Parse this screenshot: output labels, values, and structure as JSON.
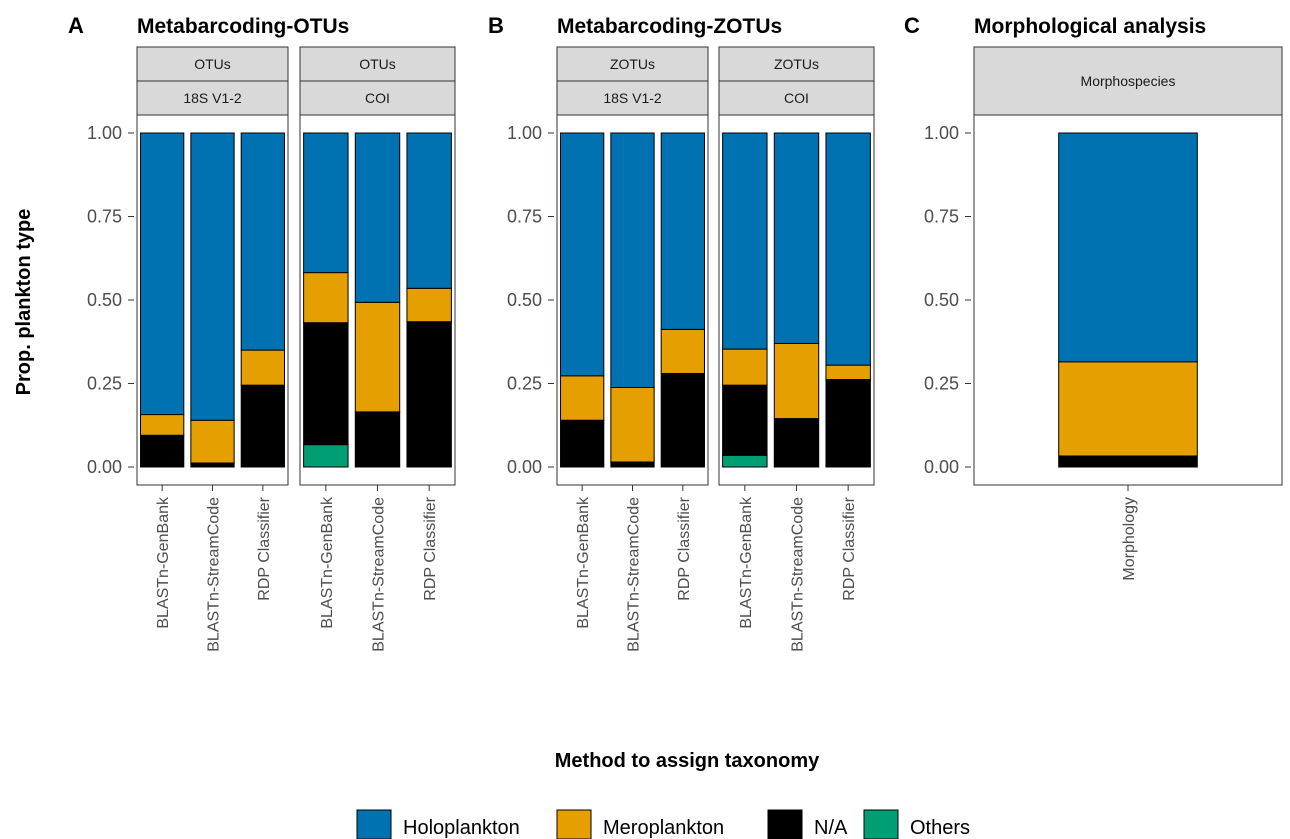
{
  "colors": {
    "Holoplankton": "#0072b2",
    "Meroplankton": "#e69f00",
    "N/A": "#000000",
    "Others": "#009e73"
  },
  "chart_data": {
    "type": "bar",
    "stacked": true,
    "ylabel": "Prop. plankton type",
    "xlabel": "Method to assign taxonomy",
    "ylim": [
      0,
      1
    ],
    "yticks": [
      "0.00",
      "0.25",
      "0.50",
      "0.75",
      "1.00"
    ],
    "legend": {
      "position": "bottom",
      "entries": [
        "Holoplankton",
        "Meroplankton",
        "N/A",
        "Others"
      ]
    },
    "panels": [
      {
        "letter": "A",
        "title": "Metabarcoding-OTUs",
        "facets": [
          {
            "strip_top": "OTUs",
            "strip_bottom": "18S V1-2",
            "categories": [
              "BLASTn-GenBank",
              "BLASTn-StreamCode",
              "RDP Classifier"
            ],
            "series": [
              {
                "name": "Others",
                "values": [
                  0.0,
                  0.0,
                  0.0
                ]
              },
              {
                "name": "N/A",
                "values": [
                  0.095,
                  0.012,
                  0.245
                ]
              },
              {
                "name": "Meroplankton",
                "values": [
                  0.062,
                  0.128,
                  0.105
                ]
              },
              {
                "name": "Holoplankton",
                "values": [
                  0.843,
                  0.86,
                  0.65
                ]
              }
            ]
          },
          {
            "strip_top": "OTUs",
            "strip_bottom": "COI",
            "categories": [
              "BLASTn-GenBank",
              "BLASTn-StreamCode",
              "RDP Classifier"
            ],
            "series": [
              {
                "name": "Others",
                "values": [
                  0.067,
                  0.0,
                  0.0
                ]
              },
              {
                "name": "N/A",
                "values": [
                  0.365,
                  0.165,
                  0.435
                ]
              },
              {
                "name": "Meroplankton",
                "values": [
                  0.15,
                  0.328,
                  0.1
                ]
              },
              {
                "name": "Holoplankton",
                "values": [
                  0.418,
                  0.507,
                  0.465
                ]
              }
            ]
          }
        ]
      },
      {
        "letter": "B",
        "title": "Metabarcoding-ZOTUs",
        "facets": [
          {
            "strip_top": "ZOTUs",
            "strip_bottom": "18S V1-2",
            "categories": [
              "BLASTn-GenBank",
              "BLASTn-StreamCode",
              "RDP Classifier"
            ],
            "series": [
              {
                "name": "Others",
                "values": [
                  0.0,
                  0.0,
                  0.0
                ]
              },
              {
                "name": "N/A",
                "values": [
                  0.14,
                  0.015,
                  0.28
                ]
              },
              {
                "name": "Meroplankton",
                "values": [
                  0.133,
                  0.223,
                  0.132
                ]
              },
              {
                "name": "Holoplankton",
                "values": [
                  0.727,
                  0.762,
                  0.588
                ]
              }
            ]
          },
          {
            "strip_top": "ZOTUs",
            "strip_bottom": "COI",
            "categories": [
              "BLASTn-GenBank",
              "BLASTn-StreamCode",
              "RDP Classifier"
            ],
            "series": [
              {
                "name": "Others",
                "values": [
                  0.035,
                  0.0,
                  0.0
                ]
              },
              {
                "name": "N/A",
                "values": [
                  0.21,
                  0.145,
                  0.262
                ]
              },
              {
                "name": "Meroplankton",
                "values": [
                  0.108,
                  0.225,
                  0.043
                ]
              },
              {
                "name": "Holoplankton",
                "values": [
                  0.647,
                  0.63,
                  0.695
                ]
              }
            ]
          }
        ]
      },
      {
        "letter": "C",
        "title": "Morphological analysis",
        "facets": [
          {
            "strip_top": "Morphospecies",
            "strip_bottom": "",
            "categories": [
              "Morphology"
            ],
            "series": [
              {
                "name": "Others",
                "values": [
                  0.0
                ]
              },
              {
                "name": "N/A",
                "values": [
                  0.033
                ]
              },
              {
                "name": "Meroplankton",
                "values": [
                  0.282
                ]
              },
              {
                "name": "Holoplankton",
                "values": [
                  0.685
                ]
              }
            ]
          }
        ]
      }
    ]
  }
}
